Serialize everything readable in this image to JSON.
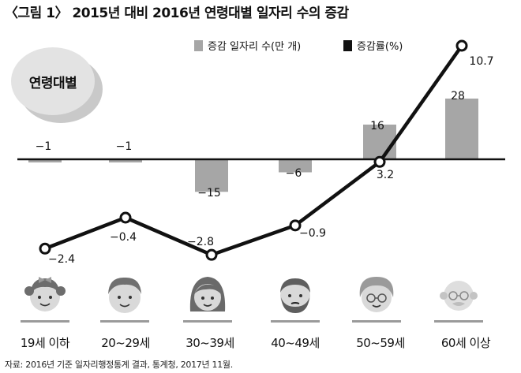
{
  "title": "〈그림 1〉 2015년 대비 2016년 연령대별 일자리 수의 증감",
  "badge": "연령대별",
  "legend": {
    "bar": "증감 일자리 수(만 개)",
    "line": "증감률(%)"
  },
  "source": "자료: 2016년 기준 일자리행정통계 결과, 통계청, 2017년 11월.",
  "colors": {
    "bar": "#a6a6a6",
    "line": "#111111",
    "marker_fill": "#ffffff"
  },
  "chart_data": {
    "type": "bar",
    "categories": [
      "19세 이하",
      "20~29세",
      "30~39세",
      "40~49세",
      "50~59세",
      "60세 이상"
    ],
    "series": [
      {
        "name": "증감 일자리 수(만 개)",
        "type": "bar",
        "values": [
          -1,
          -1,
          -15,
          -6,
          16,
          28
        ],
        "labels": [
          "−1",
          "−1",
          "−15",
          "−6",
          "16",
          "28"
        ]
      },
      {
        "name": "증감률(%)",
        "type": "line",
        "values": [
          -2.4,
          -0.4,
          -2.8,
          -0.9,
          3.2,
          10.7
        ],
        "labels": [
          "−2.4",
          "−0.4",
          "−2.8",
          "−0.9",
          "3.2",
          "10.7"
        ]
      }
    ],
    "xlabel": "",
    "ylabel": "",
    "bar_range": [
      -15,
      28
    ],
    "line_range": [
      -2.8,
      10.7
    ],
    "grid": false,
    "legend_position": "top"
  }
}
